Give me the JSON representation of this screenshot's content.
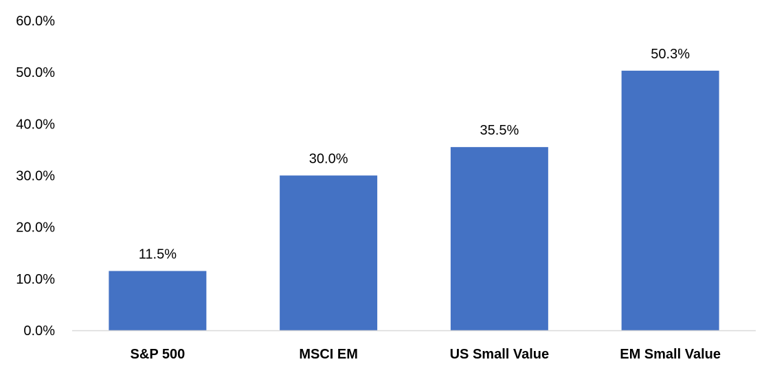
{
  "chart_data": {
    "type": "bar",
    "title": "",
    "xlabel": "",
    "ylabel": "",
    "categories": [
      "S&P 500",
      "MSCI EM",
      "US Small Value",
      "EM Small Value"
    ],
    "values": [
      11.5,
      30.0,
      35.5,
      50.3
    ],
    "value_labels": [
      "11.5%",
      "30.0%",
      "35.5%",
      "50.3%"
    ],
    "ylim": [
      0,
      60
    ],
    "y_ticks": [
      0,
      10,
      20,
      30,
      40,
      50,
      60
    ],
    "y_tick_labels": [
      "0.0%",
      "10.0%",
      "20.0%",
      "30.0%",
      "40.0%",
      "50.0%",
      "60.0%"
    ],
    "grid": false,
    "legend": "none",
    "bar_color": "#4472C4",
    "axis_color": "#D9D9D9"
  }
}
